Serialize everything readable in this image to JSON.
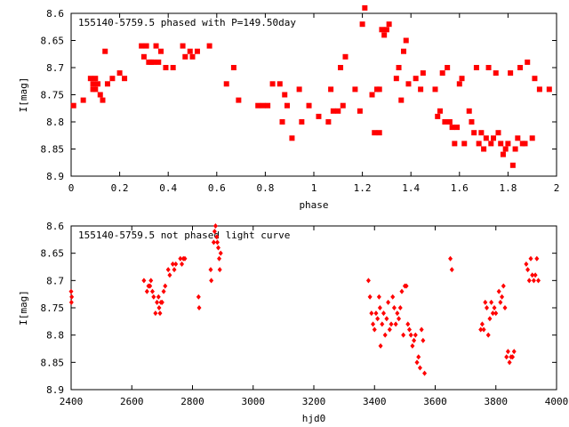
{
  "chart_data": [
    {
      "type": "scatter",
      "title": "155140-5759.5 phased with P=149.50day",
      "xlabel": "phase",
      "ylabel": "I[mag]",
      "xlim": [
        0,
        2
      ],
      "ylim": [
        8.6,
        8.9
      ],
      "y_inverted": true,
      "x_ticks": [
        "0",
        "0.2",
        "0.4",
        "0.6",
        "0.8",
        "1",
        "1.2",
        "1.4",
        "1.6",
        "1.8",
        "2"
      ],
      "y_ticks": [
        "8.6",
        "8.65",
        "8.7",
        "8.75",
        "8.8",
        "8.85",
        "8.9"
      ],
      "marker_color": "#ff0000",
      "series": [
        {
          "x": [
            0.01,
            0.05,
            0.08,
            0.09,
            0.09,
            0.1,
            0.1,
            0.11,
            0.12,
            0.13,
            0.14,
            0.15,
            0.17,
            0.2,
            0.22,
            0.29,
            0.3,
            0.31,
            0.32,
            0.33,
            0.34,
            0.35,
            0.36,
            0.37,
            0.39,
            0.42,
            0.46,
            0.47,
            0.49,
            0.5,
            0.52,
            0.57,
            0.64,
            0.67,
            0.69,
            0.77,
            0.79,
            0.81,
            0.83,
            0.86,
            0.87,
            0.88,
            0.89,
            0.91,
            0.94,
            0.95,
            0.98,
            1.02,
            1.06,
            1.07,
            1.08,
            1.1,
            1.11,
            1.12,
            1.13,
            1.17,
            1.19,
            1.2,
            1.21,
            1.24,
            1.25,
            1.26,
            1.27,
            1.27,
            1.28,
            1.29,
            1.3,
            1.31,
            1.34,
            1.35,
            1.36,
            1.37,
            1.38,
            1.39,
            1.42,
            1.44,
            1.45,
            1.5,
            1.51,
            1.52,
            1.53,
            1.54,
            1.55,
            1.56,
            1.57,
            1.58,
            1.59,
            1.6,
            1.61,
            1.62,
            1.64,
            1.65,
            1.66,
            1.67,
            1.68,
            1.69,
            1.7,
            1.71,
            1.72,
            1.73,
            1.74,
            1.75,
            1.76,
            1.77,
            1.78,
            1.79,
            1.8,
            1.81,
            1.82,
            1.83,
            1.84,
            1.85,
            1.86,
            1.87,
            1.88,
            1.9,
            1.91,
            1.93,
            1.97
          ],
          "y": [
            8.77,
            8.76,
            8.72,
            8.74,
            8.73,
            8.72,
            8.74,
            8.73,
            8.75,
            8.76,
            8.67,
            8.73,
            8.72,
            8.71,
            8.72,
            8.66,
            8.68,
            8.66,
            8.69,
            8.69,
            8.69,
            8.66,
            8.69,
            8.67,
            8.7,
            8.7,
            8.66,
            8.68,
            8.67,
            8.68,
            8.67,
            8.66,
            8.73,
            8.7,
            8.76,
            8.77,
            8.77,
            8.77,
            8.73,
            8.73,
            8.8,
            8.75,
            8.77,
            8.83,
            8.74,
            8.8,
            8.77,
            8.79,
            8.8,
            8.74,
            8.78,
            8.78,
            8.7,
            8.77,
            8.68,
            8.74,
            8.78,
            8.62,
            8.59,
            8.75,
            8.82,
            8.74,
            8.82,
            8.74,
            8.63,
            8.64,
            8.63,
            8.62,
            8.72,
            8.7,
            8.76,
            8.67,
            8.65,
            8.73,
            8.72,
            8.74,
            8.71,
            8.74,
            8.79,
            8.78,
            8.71,
            8.8,
            8.7,
            8.8,
            8.81,
            8.84,
            8.81,
            8.73,
            8.72,
            8.84,
            8.78,
            8.8,
            8.82,
            8.7,
            8.84,
            8.82,
            8.85,
            8.83,
            8.7,
            8.84,
            8.83,
            8.71,
            8.82,
            8.84,
            8.86,
            8.85,
            8.84,
            8.71,
            8.88,
            8.85,
            8.83,
            8.7,
            8.84,
            8.84,
            8.69,
            8.83,
            8.72,
            8.74,
            8.74
          ]
        }
      ]
    },
    {
      "type": "scatter",
      "title": "155140-5759.5 not phased light curve",
      "xlabel": "hjd0",
      "ylabel": "I[mag]",
      "xlim": [
        2400,
        4000
      ],
      "ylim": [
        8.6,
        8.9
      ],
      "y_inverted": true,
      "x_ticks": [
        "2400",
        "2600",
        "2800",
        "3000",
        "3200",
        "3400",
        "3600",
        "3800",
        "4000"
      ],
      "y_ticks": [
        "8.6",
        "8.65",
        "8.7",
        "8.75",
        "8.8",
        "8.85",
        "8.9"
      ],
      "marker_color": "#ff0000",
      "series": [
        {
          "x": [
            2400,
            2401,
            2402,
            2640,
            2650,
            2655,
            2660,
            2663,
            2668,
            2672,
            2678,
            2683,
            2688,
            2690,
            2693,
            2696,
            2700,
            2705,
            2710,
            2720,
            2725,
            2735,
            2740,
            2745,
            2760,
            2765,
            2770,
            2775,
            2820,
            2822,
            2860,
            2862,
            2870,
            2873,
            2876,
            2880,
            2882,
            2885,
            2888,
            2890,
            2893,
            3380,
            3385,
            3390,
            3395,
            3400,
            3405,
            3410,
            3415,
            3418,
            3420,
            3425,
            3430,
            3435,
            3440,
            3445,
            3450,
            3455,
            3460,
            3465,
            3470,
            3475,
            3480,
            3485,
            3490,
            3495,
            3500,
            3505,
            3510,
            3515,
            3520,
            3525,
            3530,
            3535,
            3540,
            3545,
            3550,
            3555,
            3560,
            3565,
            3650,
            3655,
            3750,
            3755,
            3760,
            3765,
            3770,
            3775,
            3780,
            3785,
            3790,
            3795,
            3800,
            3810,
            3815,
            3820,
            3825,
            3830,
            3835,
            3840,
            3845,
            3850,
            3855,
            3860,
            3900,
            3905,
            3910,
            3915,
            3920,
            3925,
            3930,
            3935,
            3940
          ],
          "y": [
            8.72,
            8.74,
            8.73,
            8.7,
            8.72,
            8.71,
            8.71,
            8.7,
            8.72,
            8.73,
            8.76,
            8.74,
            8.73,
            8.75,
            8.76,
            8.74,
            8.74,
            8.72,
            8.71,
            8.68,
            8.69,
            8.67,
            8.68,
            8.67,
            8.66,
            8.67,
            8.66,
            8.66,
            8.73,
            8.75,
            8.68,
            8.7,
            8.63,
            8.61,
            8.6,
            8.62,
            8.63,
            8.64,
            8.66,
            8.68,
            8.65,
            8.7,
            8.73,
            8.76,
            8.78,
            8.79,
            8.76,
            8.77,
            8.73,
            8.75,
            8.82,
            8.78,
            8.76,
            8.8,
            8.77,
            8.74,
            8.79,
            8.78,
            8.73,
            8.75,
            8.78,
            8.76,
            8.77,
            8.75,
            8.72,
            8.8,
            8.71,
            8.71,
            8.78,
            8.79,
            8.8,
            8.82,
            8.81,
            8.8,
            8.85,
            8.84,
            8.86,
            8.79,
            8.81,
            8.87,
            8.66,
            8.68,
            8.79,
            8.78,
            8.79,
            8.74,
            8.75,
            8.8,
            8.77,
            8.74,
            8.76,
            8.75,
            8.76,
            8.72,
            8.74,
            8.73,
            8.71,
            8.75,
            8.84,
            8.83,
            8.85,
            8.84,
            8.84,
            8.83,
            8.67,
            8.68,
            8.7,
            8.66,
            8.69,
            8.7,
            8.69,
            8.66,
            8.7
          ]
        }
      ]
    }
  ]
}
